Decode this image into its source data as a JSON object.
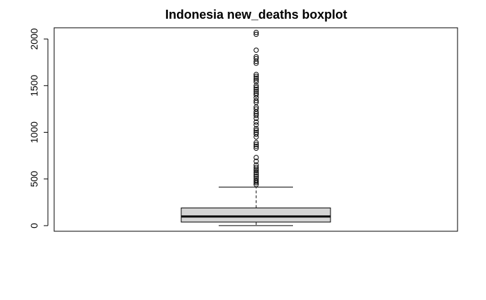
{
  "chart_data": {
    "type": "boxplot",
    "title": "Indonesia new_deaths boxplot",
    "xlabel": "",
    "ylabel": "",
    "ylim": [
      -60,
      2120
    ],
    "yticks": [
      0,
      500,
      1000,
      1500,
      2000
    ],
    "tick_labels": [
      "0",
      "500",
      "1000",
      "1500",
      "2000"
    ],
    "grid": false,
    "box": {
      "min": 0,
      "q1": 38,
      "median": 98,
      "q3": 190,
      "whisker_low": 0,
      "whisker_high": 413,
      "fill": "#d3d3d3",
      "outliers": [
        440,
        460,
        475,
        490,
        510,
        530,
        550,
        570,
        590,
        605,
        625,
        650,
        690,
        730,
        830,
        850,
        870,
        890,
        950,
        980,
        1000,
        1020,
        1040,
        1080,
        1110,
        1150,
        1180,
        1200,
        1220,
        1250,
        1270,
        1320,
        1340,
        1370,
        1400,
        1420,
        1440,
        1460,
        1480,
        1500,
        1540,
        1560,
        1580,
        1600,
        1620,
        1740,
        1760,
        1790,
        1810,
        1880,
        2050,
        2070
      ]
    }
  }
}
